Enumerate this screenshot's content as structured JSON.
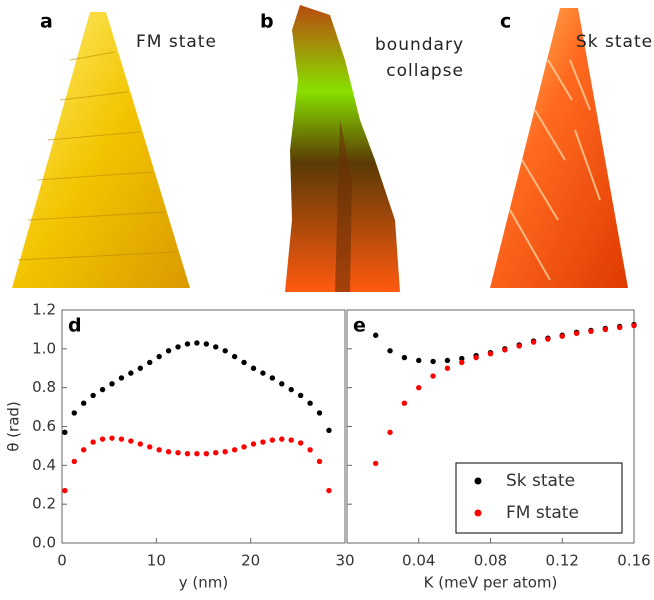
{
  "panels": [
    {
      "label": "a",
      "caption": "FM state"
    },
    {
      "label": "b",
      "caption": "boundary collapse"
    },
    {
      "label": "c",
      "caption": "Sk state"
    }
  ],
  "chart_data": [
    {
      "type": "scatter",
      "panel_label": "d",
      "x_label": "y (nm)",
      "y_label": "θ (rad)",
      "xlim": [
        0,
        30
      ],
      "xticks": [
        0,
        10,
        20,
        30
      ],
      "ylim": [
        0,
        1.2
      ],
      "yticks": [
        {
          "value": 0,
          "label": "0.0"
        },
        0.2,
        0.4,
        0.6,
        0.8,
        {
          "value": 1,
          "label": "1.0"
        },
        1.2
      ],
      "series": [
        {
          "color": "#000000",
          "x": [
            0.3,
            1.3,
            2.3,
            3.3,
            4.3,
            5.3,
            6.3,
            7.3,
            8.3,
            9.3,
            10.3,
            11.3,
            12.3,
            13.3,
            14.3,
            15.3,
            16.3,
            17.3,
            18.3,
            19.3,
            20.3,
            21.3,
            22.3,
            23.3,
            24.3,
            25.3,
            26.3,
            27.3,
            28.3
          ],
          "values": [
            0.57,
            0.67,
            0.72,
            0.76,
            0.79,
            0.82,
            0.85,
            0.875,
            0.9,
            0.93,
            0.96,
            0.99,
            1.01,
            1.025,
            1.03,
            1.025,
            1.01,
            0.99,
            0.96,
            0.93,
            0.9,
            0.875,
            0.85,
            0.82,
            0.79,
            0.76,
            0.72,
            0.67,
            0.58
          ]
        },
        {
          "color": "#ff0000",
          "x": [
            0.3,
            1.3,
            2.3,
            3.3,
            4.3,
            5.3,
            6.3,
            7.3,
            8.3,
            9.3,
            10.3,
            11.3,
            12.3,
            13.3,
            14.3,
            15.3,
            16.3,
            17.3,
            18.3,
            19.3,
            20.3,
            21.3,
            22.3,
            23.3,
            24.3,
            25.3,
            26.3,
            27.3,
            28.3
          ],
          "values": [
            0.27,
            0.42,
            0.48,
            0.52,
            0.535,
            0.54,
            0.535,
            0.525,
            0.51,
            0.495,
            0.48,
            0.47,
            0.465,
            0.46,
            0.46,
            0.46,
            0.465,
            0.47,
            0.48,
            0.495,
            0.51,
            0.52,
            0.53,
            0.535,
            0.53,
            0.515,
            0.48,
            0.42,
            0.27
          ]
        }
      ]
    },
    {
      "type": "scatter",
      "panel_label": "e",
      "x_label": "K (meV per atom)",
      "xlim": [
        0,
        0.16
      ],
      "xticks": [
        0.04,
        0.08,
        0.12,
        0.16
      ],
      "ylim": [
        0,
        1.2
      ],
      "yticks": [
        0,
        0.2,
        0.4,
        0.6,
        0.8,
        1,
        1.2
      ],
      "legend": "lower right",
      "series": [
        {
          "name": "Sk state",
          "color": "#000000",
          "x": [
            0.016,
            0.024,
            0.032,
            0.04,
            0.048,
            0.056,
            0.064,
            0.072,
            0.08,
            0.088,
            0.096,
            0.104,
            0.112,
            0.12,
            0.128,
            0.136,
            0.144,
            0.152,
            0.16
          ],
          "values": [
            1.07,
            0.99,
            0.955,
            0.94,
            0.935,
            0.94,
            0.95,
            0.965,
            0.98,
            1.0,
            1.02,
            1.04,
            1.055,
            1.07,
            1.085,
            1.095,
            1.105,
            1.115,
            1.125
          ]
        },
        {
          "name": "FM state",
          "color": "#ff0000",
          "x": [
            0.016,
            0.024,
            0.032,
            0.04,
            0.048,
            0.056,
            0.064,
            0.072,
            0.08,
            0.088,
            0.096,
            0.104,
            0.112,
            0.12,
            0.128,
            0.136,
            0.144,
            0.152,
            0.16
          ],
          "values": [
            0.41,
            0.57,
            0.72,
            0.8,
            0.86,
            0.9,
            0.93,
            0.955,
            0.975,
            0.995,
            1.015,
            1.035,
            1.05,
            1.065,
            1.08,
            1.09,
            1.1,
            1.11,
            1.12
          ]
        }
      ]
    }
  ]
}
